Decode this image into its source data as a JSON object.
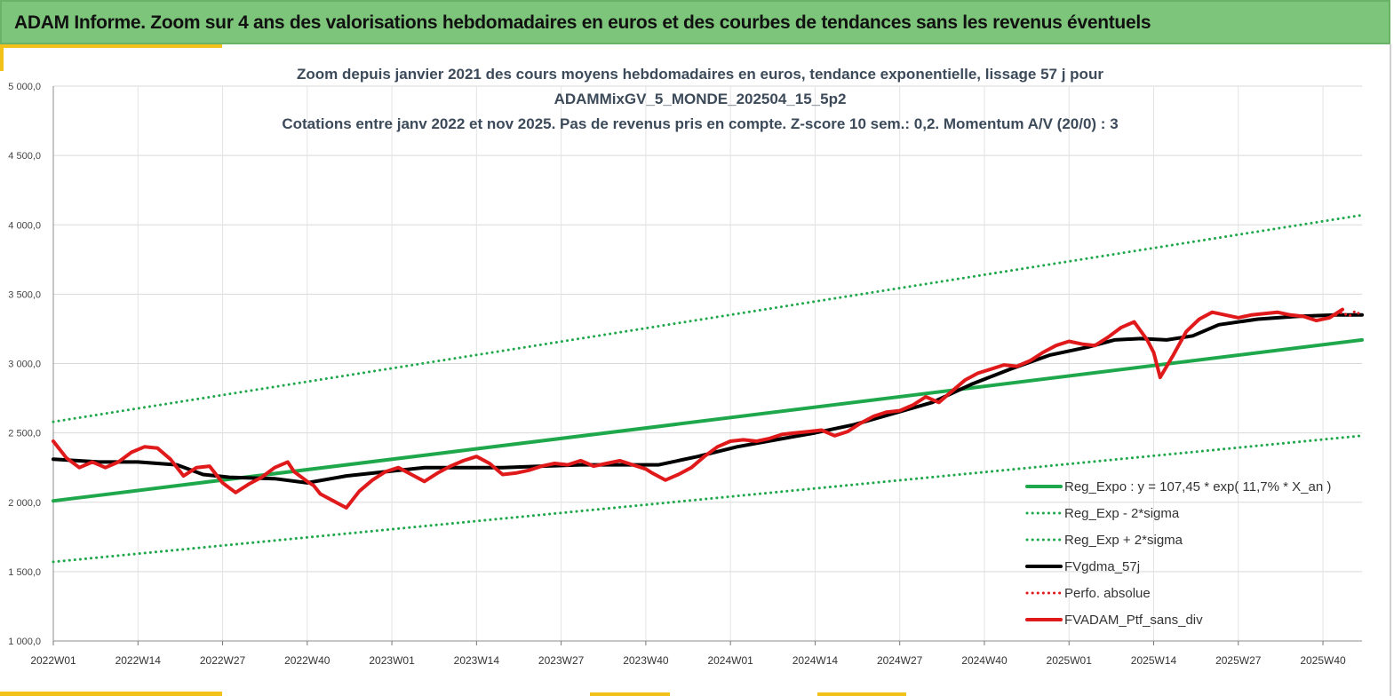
{
  "banner": {
    "title": "ADAM Informe. Zoom sur 4 ans des valorisations hebdomadaires en euros et des courbes de tendances sans les revenus éventuels"
  },
  "colors": {
    "banner_bg": "#7dc57a",
    "accent": "#f2c21b",
    "reg_expo": "#1fa84b",
    "sigma": "#1fa84b",
    "fvgdma": "#000000",
    "perfo": "#e0191b",
    "fvadam": "#e0191b"
  },
  "chart_data": {
    "type": "line",
    "title_lines": [
      "Zoom depuis janvier 2021 des cours moyens hebdomadaires  en euros, tendance exponentielle, lissage 57 j pour",
      "ADAMMixGV_5_MONDE_202504_15_5p2",
      "Cotations  entre janv 2022 et nov 2025. Pas de revenus pris en compte. Z-score 10 sem.: 0,2. Momentum  A/V (20/0) : 3"
    ],
    "x_range": [
      1,
      202
    ],
    "x_ticks": [
      {
        "x": 1,
        "label": "2022W01"
      },
      {
        "x": 14,
        "label": "2022W14"
      },
      {
        "x": 27,
        "label": "2022W27"
      },
      {
        "x": 40,
        "label": "2022W40"
      },
      {
        "x": 53,
        "label": "2023W01"
      },
      {
        "x": 66,
        "label": "2023W14"
      },
      {
        "x": 79,
        "label": "2023W27"
      },
      {
        "x": 92,
        "label": "2023W40"
      },
      {
        "x": 105,
        "label": "2024W01"
      },
      {
        "x": 118,
        "label": "2024W14"
      },
      {
        "x": 131,
        "label": "2024W27"
      },
      {
        "x": 144,
        "label": "2024W40"
      },
      {
        "x": 157,
        "label": "2025W01"
      },
      {
        "x": 170,
        "label": "2025W14"
      },
      {
        "x": 183,
        "label": "2025W27"
      },
      {
        "x": 196,
        "label": "2025W40"
      }
    ],
    "ylim": [
      1000,
      5000
    ],
    "y_ticks": [
      {
        "value": 1000,
        "label": "1 000,0"
      },
      {
        "value": 1500,
        "label": "1 500,0"
      },
      {
        "value": 2000,
        "label": "2 000,0"
      },
      {
        "value": 2500,
        "label": "2 500,0"
      },
      {
        "value": 3000,
        "label": "3 000,0"
      },
      {
        "value": 3500,
        "label": "3 500,0"
      },
      {
        "value": 4000,
        "label": "4 000,0"
      },
      {
        "value": 4500,
        "label": "4 500,0"
      },
      {
        "value": 5000,
        "label": "5 000,0"
      }
    ],
    "grid": true,
    "legend_position": "bottom-right",
    "series": [
      {
        "name": "Reg_Expo : y = 107,45 * exp( 11,7% *  X_an )",
        "style": "solid-thick",
        "color": "#1fa84b",
        "x": [
          1,
          202
        ],
        "y": [
          2010,
          3170
        ]
      },
      {
        "name": "Reg_Exp - 2*sigma",
        "style": "dotted",
        "color": "#1fa84b",
        "x": [
          1,
          202
        ],
        "y": [
          1570,
          2480
        ]
      },
      {
        "name": "Reg_Exp + 2*sigma",
        "style": "dotted",
        "color": "#1fa84b",
        "x": [
          1,
          202
        ],
        "y": [
          2580,
          4070
        ]
      },
      {
        "name": "FVgdma_57j",
        "style": "solid-thick",
        "color": "#000000",
        "x": [
          1,
          8,
          14,
          20,
          24,
          28,
          35,
          40,
          46,
          52,
          58,
          64,
          70,
          76,
          82,
          88,
          94,
          100,
          106,
          112,
          118,
          124,
          130,
          136,
          142,
          148,
          154,
          160,
          164,
          168,
          172,
          176,
          180,
          186,
          192,
          198,
          202
        ],
        "y": [
          2310,
          2290,
          2290,
          2270,
          2200,
          2180,
          2170,
          2140,
          2190,
          2220,
          2250,
          2250,
          2250,
          2260,
          2270,
          2270,
          2270,
          2330,
          2400,
          2450,
          2500,
          2560,
          2640,
          2720,
          2850,
          2960,
          3060,
          3120,
          3170,
          3180,
          3170,
          3200,
          3280,
          3320,
          3340,
          3350,
          3350
        ]
      },
      {
        "name": "Perfo. absolue",
        "style": "dotted",
        "color": "#e0191b",
        "x": [
          198,
          199,
          200,
          201,
          202
        ],
        "y": [
          3350,
          3370,
          3340,
          3380,
          3340
        ]
      },
      {
        "name": "FVADAM_Ptf_sans_div",
        "style": "solid-thick",
        "color": "#e0191b",
        "x": [
          1,
          3,
          5,
          7,
          9,
          11,
          13,
          15,
          17,
          19,
          21,
          23,
          25,
          27,
          29,
          31,
          33,
          35,
          37,
          38,
          40,
          41,
          42,
          44,
          46,
          48,
          50,
          52,
          54,
          56,
          58,
          60,
          62,
          64,
          66,
          68,
          70,
          72,
          74,
          76,
          78,
          80,
          82,
          84,
          86,
          88,
          90,
          92,
          93,
          95,
          97,
          99,
          101,
          103,
          105,
          107,
          109,
          111,
          113,
          115,
          117,
          119,
          121,
          123,
          125,
          127,
          129,
          131,
          133,
          135,
          137,
          139,
          141,
          143,
          145,
          147,
          149,
          151,
          153,
          155,
          157,
          159,
          161,
          163,
          165,
          167,
          169,
          170,
          171,
          173,
          175,
          177,
          179,
          181,
          183,
          185,
          187,
          189,
          191,
          193,
          195,
          197,
          199
        ],
        "y": [
          2440,
          2320,
          2250,
          2290,
          2250,
          2290,
          2360,
          2400,
          2390,
          2310,
          2190,
          2250,
          2260,
          2140,
          2070,
          2130,
          2180,
          2250,
          2290,
          2220,
          2150,
          2120,
          2060,
          2010,
          1960,
          2080,
          2160,
          2220,
          2250,
          2200,
          2150,
          2210,
          2260,
          2300,
          2330,
          2280,
          2200,
          2210,
          2230,
          2260,
          2280,
          2270,
          2300,
          2260,
          2280,
          2300,
          2270,
          2240,
          2210,
          2160,
          2200,
          2250,
          2330,
          2400,
          2440,
          2450,
          2440,
          2460,
          2490,
          2500,
          2510,
          2520,
          2480,
          2510,
          2570,
          2620,
          2650,
          2660,
          2700,
          2760,
          2720,
          2800,
          2880,
          2930,
          2960,
          2990,
          2980,
          3020,
          3080,
          3130,
          3160,
          3140,
          3130,
          3190,
          3260,
          3300,
          3170,
          3080,
          2900,
          3060,
          3230,
          3320,
          3370,
          3350,
          3330,
          3350,
          3360,
          3370,
          3350,
          3340,
          3310,
          3330,
          3390
        ]
      }
    ]
  }
}
